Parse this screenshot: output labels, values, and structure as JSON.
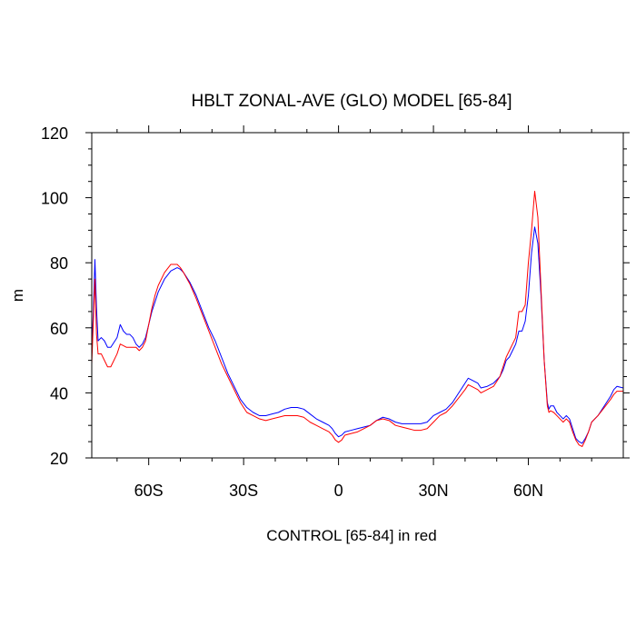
{
  "chart_data": {
    "type": "line",
    "title": "HBLT ZONAL-AVE (GLO) MODEL [65-84]",
    "xlabel": "CONTROL [65-84] in red",
    "ylabel": "m",
    "xlim": [
      -78,
      90
    ],
    "ylim": [
      20,
      120
    ],
    "x_ticks": [
      {
        "value": -60,
        "label": "60S"
      },
      {
        "value": -30,
        "label": "30S"
      },
      {
        "value": 0,
        "label": "0"
      },
      {
        "value": 30,
        "label": "30N"
      },
      {
        "value": 60,
        "label": "60N"
      }
    ],
    "y_ticks": [
      {
        "value": 20,
        "label": "20"
      },
      {
        "value": 40,
        "label": "40"
      },
      {
        "value": 60,
        "label": "60"
      },
      {
        "value": 80,
        "label": "80"
      },
      {
        "value": 100,
        "label": "100"
      },
      {
        "value": 120,
        "label": "120"
      }
    ],
    "grid": false,
    "series": [
      {
        "color": "#0000ff",
        "points": [
          [
            -78,
            53
          ],
          [
            -77.5,
            65
          ],
          [
            -77,
            81
          ],
          [
            -76.5,
            66
          ],
          [
            -76,
            56
          ],
          [
            -75,
            57
          ],
          [
            -74,
            56
          ],
          [
            -73,
            54
          ],
          [
            -72,
            54
          ],
          [
            -70,
            57
          ],
          [
            -69,
            61
          ],
          [
            -68,
            59
          ],
          [
            -67,
            58
          ],
          [
            -66,
            58
          ],
          [
            -65,
            57
          ],
          [
            -64,
            55
          ],
          [
            -63,
            54
          ],
          [
            -62,
            55
          ],
          [
            -61,
            57
          ],
          [
            -60,
            61
          ],
          [
            -59,
            65
          ],
          [
            -58,
            68
          ],
          [
            -57,
            71
          ],
          [
            -55,
            75
          ],
          [
            -53,
            77.5
          ],
          [
            -51,
            78.5
          ],
          [
            -50,
            78
          ],
          [
            -49,
            77
          ],
          [
            -47,
            74
          ],
          [
            -45,
            70
          ],
          [
            -43,
            65
          ],
          [
            -41,
            60
          ],
          [
            -39,
            56
          ],
          [
            -37,
            51
          ],
          [
            -35,
            46
          ],
          [
            -33,
            42
          ],
          [
            -31,
            38
          ],
          [
            -29,
            35.5
          ],
          [
            -27,
            34
          ],
          [
            -25,
            33
          ],
          [
            -23,
            33
          ],
          [
            -21,
            33.5
          ],
          [
            -19,
            34
          ],
          [
            -17,
            35
          ],
          [
            -15,
            35.5
          ],
          [
            -13,
            35.5
          ],
          [
            -11,
            35
          ],
          [
            -9,
            33.5
          ],
          [
            -7,
            32
          ],
          [
            -5,
            31
          ],
          [
            -3,
            30
          ],
          [
            -2,
            29
          ],
          [
            -1,
            27.5
          ],
          [
            0,
            26.5
          ],
          [
            1,
            27
          ],
          [
            2,
            28
          ],
          [
            4,
            28.5
          ],
          [
            6,
            29
          ],
          [
            8,
            29.5
          ],
          [
            10,
            30
          ],
          [
            12,
            31.5
          ],
          [
            14,
            32.5
          ],
          [
            16,
            32
          ],
          [
            18,
            31
          ],
          [
            20,
            30.5
          ],
          [
            22,
            30.5
          ],
          [
            24,
            30.5
          ],
          [
            26,
            30.5
          ],
          [
            28,
            31
          ],
          [
            30,
            33
          ],
          [
            32,
            34
          ],
          [
            34,
            35
          ],
          [
            36,
            37
          ],
          [
            38,
            40
          ],
          [
            40,
            43
          ],
          [
            41,
            44.5
          ],
          [
            42,
            44
          ],
          [
            44,
            43
          ],
          [
            45,
            41.5
          ],
          [
            47,
            42
          ],
          [
            49,
            43
          ],
          [
            51,
            45
          ],
          [
            52,
            47
          ],
          [
            53,
            50
          ],
          [
            54,
            51
          ],
          [
            55,
            53
          ],
          [
            56,
            55
          ],
          [
            57,
            59
          ],
          [
            58,
            59
          ],
          [
            59,
            62
          ],
          [
            60,
            70
          ],
          [
            61,
            83
          ],
          [
            62,
            91
          ],
          [
            63,
            86
          ],
          [
            64,
            70
          ],
          [
            65,
            50
          ],
          [
            66,
            37
          ],
          [
            66.5,
            35
          ],
          [
            67,
            36
          ],
          [
            68,
            36
          ],
          [
            69,
            34
          ],
          [
            70,
            33
          ],
          [
            71,
            32
          ],
          [
            72,
            33
          ],
          [
            73,
            32
          ],
          [
            74,
            29
          ],
          [
            75,
            26
          ],
          [
            76,
            25
          ],
          [
            77,
            24.5
          ],
          [
            78,
            26
          ],
          [
            79,
            28
          ],
          [
            80,
            31
          ],
          [
            82,
            33
          ],
          [
            84,
            36
          ],
          [
            86,
            39
          ],
          [
            87,
            41
          ],
          [
            88,
            42
          ],
          [
            90,
            41.5
          ]
        ]
      },
      {
        "color": "#ff0000",
        "points": [
          [
            -78,
            49
          ],
          [
            -77.5,
            62
          ],
          [
            -77,
            75
          ],
          [
            -76.5,
            58
          ],
          [
            -76,
            52
          ],
          [
            -75,
            52
          ],
          [
            -74,
            50
          ],
          [
            -73,
            48
          ],
          [
            -72,
            48
          ],
          [
            -70,
            52
          ],
          [
            -69,
            55
          ],
          [
            -68,
            54.5
          ],
          [
            -67,
            54
          ],
          [
            -66,
            54
          ],
          [
            -65,
            54
          ],
          [
            -64,
            54
          ],
          [
            -63,
            53
          ],
          [
            -62,
            54
          ],
          [
            -61,
            56
          ],
          [
            -60,
            61
          ],
          [
            -59,
            66
          ],
          [
            -58,
            70
          ],
          [
            -57,
            73
          ],
          [
            -55,
            77
          ],
          [
            -53,
            79.5
          ],
          [
            -51,
            79.5
          ],
          [
            -50,
            78.5
          ],
          [
            -49,
            77
          ],
          [
            -47,
            73.5
          ],
          [
            -45,
            69
          ],
          [
            -43,
            64
          ],
          [
            -41,
            59
          ],
          [
            -39,
            54
          ],
          [
            -37,
            49
          ],
          [
            -35,
            45
          ],
          [
            -33,
            41
          ],
          [
            -31,
            37
          ],
          [
            -29,
            34
          ],
          [
            -27,
            33
          ],
          [
            -25,
            32
          ],
          [
            -23,
            31.5
          ],
          [
            -21,
            32
          ],
          [
            -19,
            32.5
          ],
          [
            -17,
            33
          ],
          [
            -15,
            33
          ],
          [
            -13,
            33
          ],
          [
            -11,
            32.5
          ],
          [
            -9,
            31
          ],
          [
            -7,
            30
          ],
          [
            -5,
            29
          ],
          [
            -3,
            28
          ],
          [
            -2,
            27
          ],
          [
            -1,
            25.5
          ],
          [
            0,
            24.8
          ],
          [
            1,
            25.5
          ],
          [
            2,
            27
          ],
          [
            4,
            27.5
          ],
          [
            6,
            28
          ],
          [
            8,
            29
          ],
          [
            10,
            30
          ],
          [
            12,
            31.5
          ],
          [
            14,
            32
          ],
          [
            16,
            31.5
          ],
          [
            18,
            30
          ],
          [
            20,
            29.5
          ],
          [
            22,
            29
          ],
          [
            24,
            28.5
          ],
          [
            26,
            28.5
          ],
          [
            28,
            29
          ],
          [
            30,
            31
          ],
          [
            32,
            33
          ],
          [
            34,
            34
          ],
          [
            36,
            36
          ],
          [
            38,
            38.5
          ],
          [
            40,
            41
          ],
          [
            41,
            42.5
          ],
          [
            42,
            42
          ],
          [
            44,
            41
          ],
          [
            45,
            40
          ],
          [
            47,
            41
          ],
          [
            49,
            42
          ],
          [
            51,
            45
          ],
          [
            52,
            48
          ],
          [
            53,
            51
          ],
          [
            54,
            53
          ],
          [
            55,
            55
          ],
          [
            56,
            57
          ],
          [
            57,
            65
          ],
          [
            58,
            65
          ],
          [
            59,
            67
          ],
          [
            60,
            80
          ],
          [
            61,
            90
          ],
          [
            62,
            102
          ],
          [
            63,
            94
          ],
          [
            64,
            72
          ],
          [
            65,
            50
          ],
          [
            66,
            36
          ],
          [
            66.5,
            34
          ],
          [
            67,
            34.5
          ],
          [
            68,
            34
          ],
          [
            69,
            33
          ],
          [
            70,
            32
          ],
          [
            71,
            31
          ],
          [
            72,
            32
          ],
          [
            73,
            31
          ],
          [
            74,
            28
          ],
          [
            75,
            25.5
          ],
          [
            76,
            24
          ],
          [
            77,
            23.5
          ],
          [
            78,
            25.5
          ],
          [
            79,
            28
          ],
          [
            80,
            31
          ],
          [
            82,
            33
          ],
          [
            84,
            35.5
          ],
          [
            86,
            38
          ],
          [
            87,
            39.5
          ],
          [
            88,
            40.5
          ],
          [
            90,
            40.5
          ]
        ]
      }
    ]
  }
}
